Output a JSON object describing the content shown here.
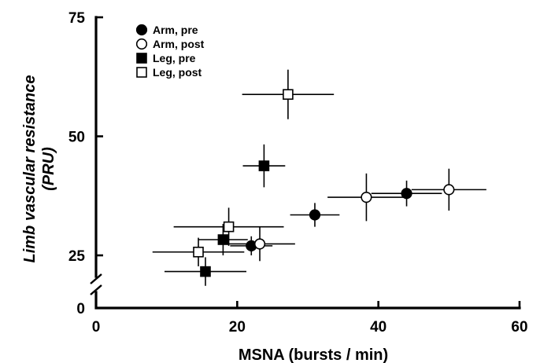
{
  "chart_data": {
    "type": "scatter",
    "xlabel": "MSNA (bursts / min)",
    "ylabel_line1": "Limb vascular resistance",
    "ylabel_line2": "(PRU)",
    "x_ticks": [
      0,
      20,
      40,
      60
    ],
    "y_ticks": [
      0,
      25,
      50,
      75
    ],
    "xlim": [
      0,
      60
    ],
    "ylim_upper": [
      25,
      75
    ],
    "y_axis_break": true,
    "legend_position": "top-left",
    "series": [
      {
        "name": "Arm, pre",
        "marker": "circle",
        "filled": true,
        "points": [
          {
            "x": 22,
            "y": 27,
            "xerr": 3,
            "yerr": 2
          },
          {
            "x": 31,
            "y": 33.5,
            "xerr": 3.5,
            "yerr": 2.5
          },
          {
            "x": 44,
            "y": 38,
            "xerr": 5,
            "yerr": 2.7
          }
        ]
      },
      {
        "name": "Arm, post",
        "marker": "circle",
        "filled": false,
        "points": [
          {
            "x": 23.2,
            "y": 27.4,
            "xerr": 5,
            "yerr": 3.6
          },
          {
            "x": 38.3,
            "y": 37.2,
            "xerr": 5.5,
            "yerr": 5
          },
          {
            "x": 50,
            "y": 38.8,
            "xerr": 5.3,
            "yerr": 4.4
          }
        ]
      },
      {
        "name": "Leg, pre",
        "marker": "square",
        "filled": true,
        "points": [
          {
            "x": 15.5,
            "y": 21.6,
            "xerr": 5.8,
            "yerr": 3
          },
          {
            "x": 18,
            "y": 28.3,
            "xerr": 3.5,
            "yerr": 3.3
          },
          {
            "x": 23.8,
            "y": 43.8,
            "xerr": 3,
            "yerr": 4.5
          }
        ]
      },
      {
        "name": "Leg, post",
        "marker": "square",
        "filled": false,
        "points": [
          {
            "x": 14.5,
            "y": 25.7,
            "xerr": 6.5,
            "yerr": 3
          },
          {
            "x": 18.8,
            "y": 31,
            "xerr": 7.8,
            "yerr": 4
          },
          {
            "x": 27.2,
            "y": 58.8,
            "xerr": 6.5,
            "yerr": 5.2
          }
        ]
      }
    ]
  }
}
